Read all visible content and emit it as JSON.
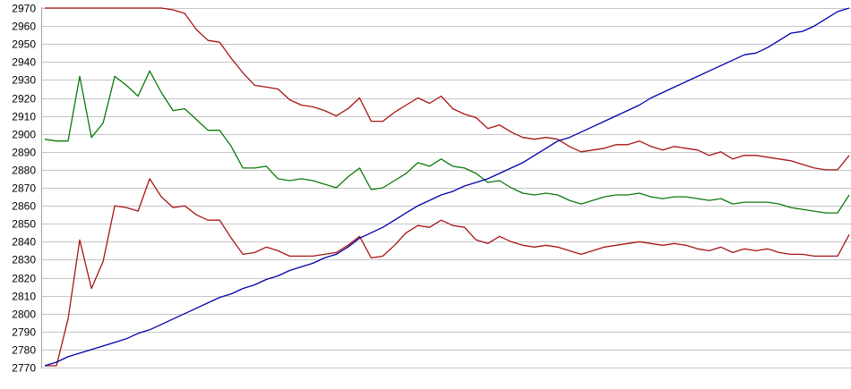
{
  "page": {
    "background": "#ffffff"
  },
  "chart_data": {
    "type": "line",
    "title": "",
    "xlabel": "",
    "ylabel": "",
    "legend": "none",
    "x_axis": {
      "tick_labels_visible": false,
      "n_points": 70
    },
    "ylim": [
      2770,
      2970
    ],
    "ytick_step": 10,
    "y_ticks": [
      2970,
      2960,
      2950,
      2940,
      2930,
      2920,
      2910,
      2900,
      2890,
      2880,
      2870,
      2860,
      2850,
      2840,
      2830,
      2820,
      2810,
      2800,
      2790,
      2780,
      2770
    ],
    "grid": {
      "horizontal": true,
      "vertical": false,
      "color": "#c6c6c6"
    },
    "axis_color": "#a0a0a0",
    "tick_label_color": "#000000",
    "series": [
      {
        "name": "series-1-upper-red",
        "color": "#a81414",
        "values": [
          2970,
          2970,
          2970,
          2970,
          2970,
          2970,
          2970,
          2970,
          2970,
          2970,
          2970,
          2969,
          2967,
          2958,
          2952,
          2951,
          2942,
          2934,
          2927,
          2926,
          2925,
          2919,
          2916,
          2915,
          2913,
          2910,
          2914,
          2920,
          2907,
          2907,
          2912,
          2916,
          2920,
          2917,
          2921,
          2914,
          2911,
          2909,
          2903,
          2905,
          2901,
          2898,
          2897,
          2898,
          2897,
          2893,
          2890,
          2891,
          2892,
          2894,
          2894,
          2896,
          2893,
          2891,
          2893,
          2892,
          2891,
          2888,
          2890,
          2886,
          2888,
          2888,
          2887,
          2886,
          2885,
          2883,
          2881,
          2880,
          2880,
          2888
        ]
      },
      {
        "name": "series-2-green",
        "color": "#0a790a",
        "values": [
          2897,
          2896,
          2896,
          2932,
          2898,
          2906,
          2932,
          2927,
          2921,
          2935,
          2923,
          2913,
          2914,
          2908,
          2902,
          2902,
          2893,
          2881,
          2881,
          2882,
          2875,
          2874,
          2875,
          2874,
          2872,
          2870,
          2876,
          2881,
          2869,
          2870,
          2874,
          2878,
          2884,
          2882,
          2886,
          2882,
          2881,
          2878,
          2873,
          2874,
          2870,
          2867,
          2866,
          2867,
          2866,
          2863,
          2861,
          2863,
          2865,
          2866,
          2866,
          2867,
          2865,
          2864,
          2865,
          2865,
          2864,
          2863,
          2864,
          2861,
          2862,
          2862,
          2862,
          2861,
          2859,
          2858,
          2857,
          2856,
          2856,
          2866
        ]
      },
      {
        "name": "series-3-lower-red",
        "color": "#a81414",
        "values": [
          2771,
          2771,
          2797,
          2841,
          2814,
          2829,
          2860,
          2859,
          2857,
          2875,
          2865,
          2859,
          2860,
          2855,
          2852,
          2852,
          2842,
          2833,
          2834,
          2837,
          2835,
          2832,
          2832,
          2832,
          2833,
          2834,
          2838,
          2843,
          2831,
          2832,
          2838,
          2845,
          2849,
          2848,
          2852,
          2849,
          2848,
          2841,
          2839,
          2843,
          2840,
          2838,
          2837,
          2838,
          2837,
          2835,
          2833,
          2835,
          2837,
          2838,
          2839,
          2840,
          2839,
          2838,
          2839,
          2838,
          2836,
          2835,
          2837,
          2834,
          2836,
          2835,
          2836,
          2834,
          2833,
          2833,
          2832,
          2832,
          2832,
          2844
        ]
      },
      {
        "name": "series-4-blue",
        "color": "#0000a8",
        "values": [
          2771,
          2773,
          2776,
          2778,
          2780,
          2782,
          2784,
          2786,
          2789,
          2791,
          2794,
          2797,
          2800,
          2803,
          2806,
          2809,
          2811,
          2814,
          2816,
          2819,
          2821,
          2824,
          2826,
          2828,
          2831,
          2833,
          2837,
          2842,
          2845,
          2848,
          2852,
          2856,
          2860,
          2863,
          2866,
          2868,
          2871,
          2873,
          2875,
          2878,
          2881,
          2884,
          2888,
          2892,
          2896,
          2898,
          2901,
          2904,
          2907,
          2910,
          2913,
          2916,
          2920,
          2923,
          2926,
          2929,
          2932,
          2935,
          2938,
          2941,
          2944,
          2945,
          2948,
          2952,
          2956,
          2957,
          2960,
          2964,
          2968,
          2970
        ]
      }
    ]
  }
}
